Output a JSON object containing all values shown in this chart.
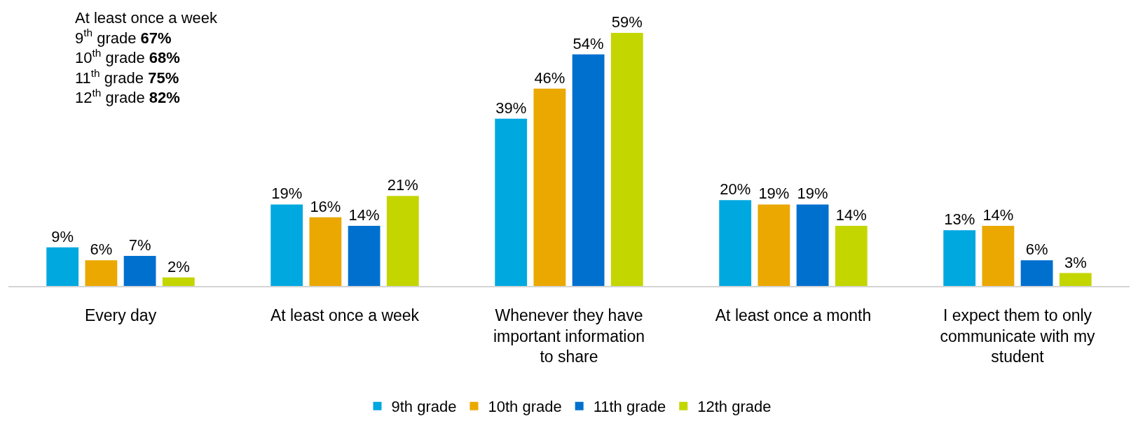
{
  "chart_data": {
    "type": "bar",
    "categories": [
      "Every day",
      "At least once a week",
      "Whenever they have important information to share",
      "At least once a month",
      "I expect them to only communicate with my student"
    ],
    "series": [
      {
        "name": "9th grade",
        "color": "#00a8e0",
        "values": [
          9,
          19,
          39,
          20,
          13
        ],
        "value_labels": [
          "9%",
          "19%",
          "39%",
          "20%",
          "13%"
        ]
      },
      {
        "name": "10th grade",
        "color": "#eaa800",
        "values": [
          6,
          16,
          46,
          19,
          14
        ],
        "value_labels": [
          "6%",
          "16%",
          "46%",
          "19%",
          "14%"
        ]
      },
      {
        "name": "11th grade",
        "color": "#0070cf",
        "values": [
          7,
          14,
          54,
          19,
          6
        ],
        "value_labels": [
          "7%",
          "14%",
          "54%",
          "19%",
          "6%"
        ]
      },
      {
        "name": "12th grade",
        "color": "#c4d600",
        "values": [
          2,
          21,
          59,
          14,
          3
        ],
        "value_labels": [
          "2%",
          "21%",
          "59%",
          "14%",
          "3%"
        ]
      }
    ],
    "annotations": [
      "At least once a week\n9$^{th}$ grade 67%\n10$^{th}$ grade 68%\n11$^{th}$ grade 75%\n12$^{th}$ grade 82%"
    ],
    "legend": "bottom"
  }
}
